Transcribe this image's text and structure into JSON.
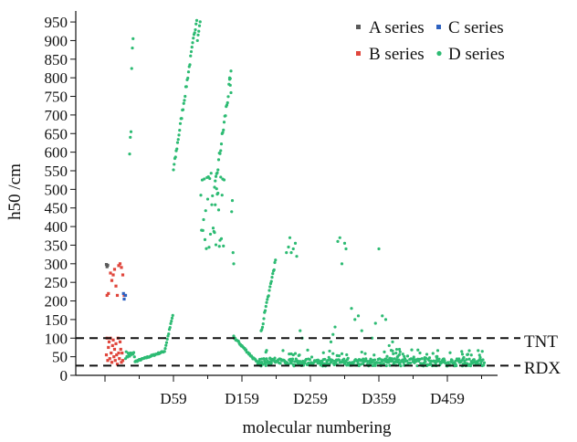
{
  "chart_data": {
    "type": "scatter",
    "xlabel": "molecular numbering",
    "ylabel": "h50 /cm",
    "ylim": [
      0,
      960
    ],
    "yticks": [
      0,
      50,
      100,
      150,
      200,
      250,
      300,
      350,
      400,
      450,
      500,
      550,
      600,
      650,
      700,
      750,
      800,
      850,
      900,
      950
    ],
    "xtick_labels": [
      "D59",
      "D159",
      "D259",
      "D359",
      "D459"
    ],
    "legend_position": "top-right",
    "series": [
      {
        "name": "A series",
        "color": "#5a5a5a",
        "marker": "square",
        "points": [
          [
            2,
            298
          ],
          [
            3,
            292
          ],
          [
            4,
            296
          ]
        ]
      },
      {
        "name": "B series",
        "color": "#e0463c",
        "marker": "square",
        "points": [
          [
            3,
            215
          ],
          [
            5,
            220
          ],
          [
            8,
            275
          ],
          [
            10,
            255
          ],
          [
            12,
            270
          ],
          [
            14,
            285
          ],
          [
            16,
            240
          ],
          [
            18,
            215
          ],
          [
            20,
            295
          ],
          [
            22,
            300
          ],
          [
            24,
            290
          ],
          [
            26,
            270
          ],
          [
            28,
            215
          ],
          [
            2,
            55
          ],
          [
            3,
            100
          ],
          [
            4,
            40
          ],
          [
            5,
            75
          ],
          [
            6,
            90
          ],
          [
            7,
            45
          ],
          [
            8,
            100
          ],
          [
            9,
            60
          ],
          [
            10,
            35
          ],
          [
            11,
            80
          ],
          [
            12,
            95
          ],
          [
            13,
            50
          ],
          [
            14,
            70
          ],
          [
            15,
            40
          ],
          [
            16,
            85
          ],
          [
            17,
            55
          ],
          [
            18,
            30
          ],
          [
            19,
            100
          ],
          [
            20,
            60
          ],
          [
            21,
            45
          ],
          [
            22,
            90
          ],
          [
            23,
            70
          ],
          [
            24,
            35
          ],
          [
            25,
            60
          ],
          [
            26,
            40
          ]
        ]
      },
      {
        "name": "C series",
        "color": "#2e62c0",
        "marker": "square",
        "points": [
          [
            27,
            220
          ],
          [
            28,
            205
          ],
          [
            30,
            215
          ]
        ]
      },
      {
        "name": "D series",
        "color": "#2dbb73",
        "marker": "circle",
        "generated": true
      }
    ],
    "reference_lines": [
      {
        "label": "TNT",
        "y": 100
      },
      {
        "label": "RDX",
        "y": 26
      }
    ]
  }
}
